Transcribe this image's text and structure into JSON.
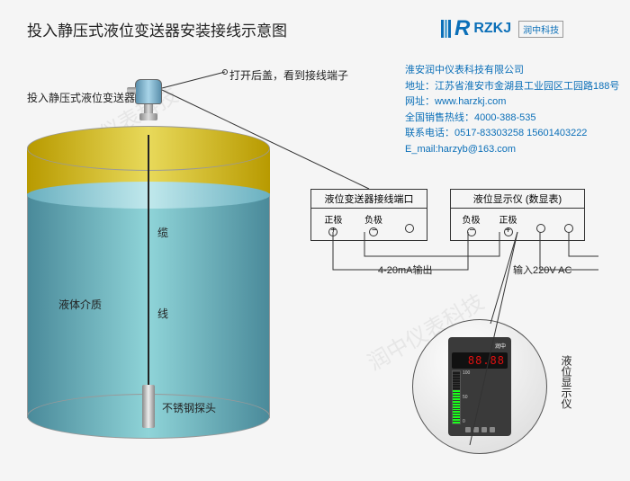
{
  "title": "投入静压式液位变送器安装接线示意图",
  "logo": {
    "abbr": "R",
    "text": "RZKJ",
    "cn": "润中科技"
  },
  "company": {
    "name": "淮安润中仪表科技有限公司",
    "addr": "地址：江苏省淮安市金湖县工业园区工园路188号",
    "web": "网址：www.harzkj.com",
    "hotline": "全国销售热线：4000-388-535",
    "tel": "联系电话：0517-83303258   15601403222",
    "email": "E_mail:harzyb@163.com"
  },
  "labels": {
    "open_cover": "打开后盖，看到接线端子",
    "transmitter": "投入静压式液位变送器",
    "cable": "缆",
    "wire": "线",
    "probe": "不锈钢探头",
    "medium": "液体介质",
    "terminal_box": "液位变送器接线端口",
    "pos": "正极",
    "neg": "负极",
    "display_box": "液位显示仪 (数显表)",
    "output": "4-20mA输出",
    "input": "输入220V AC",
    "display_side": "液位显示仪"
  },
  "display": {
    "brand": "润中",
    "reading": "88.88",
    "bar_on": 13,
    "bar_total": 20
  },
  "colors": {
    "primary": "#0b6fb8",
    "tank_top": "#e8d95a",
    "tank_liquid": "#8fd4d8",
    "bg": "#f5f5f5"
  },
  "watermark": "润中仪表科技"
}
